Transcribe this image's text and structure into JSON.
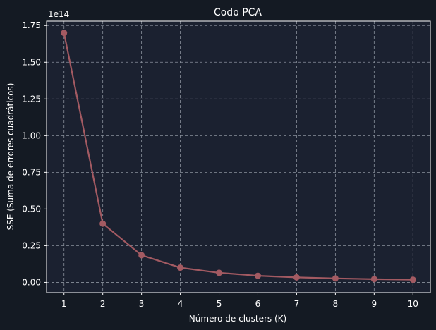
{
  "chart_data": {
    "type": "line",
    "title": "Codo PCA",
    "xlabel": "Número de clusters (K)",
    "ylabel": "SSE (Suma de errores cuadráticos)",
    "y_offset_label": "1e14",
    "x": [
      1,
      2,
      3,
      4,
      5,
      6,
      7,
      8,
      9,
      10
    ],
    "y_ticks": [
      0.0,
      0.25,
      0.5,
      0.75,
      1.0,
      1.25,
      1.5,
      1.75
    ],
    "y_tick_labels": [
      "0.00",
      "0.25",
      "0.50",
      "0.75",
      "1.00",
      "1.25",
      "1.50",
      "1.75"
    ],
    "x_tick_labels": [
      "1",
      "2",
      "3",
      "4",
      "5",
      "6",
      "7",
      "8",
      "9",
      "10"
    ],
    "ylim": [
      -0.07,
      1.78
    ],
    "xlim": [
      0.55,
      10.45
    ],
    "grid": true,
    "series": [
      {
        "values": [
          1.7,
          0.4,
          0.185,
          0.1,
          0.065,
          0.045,
          0.034,
          0.027,
          0.022,
          0.018
        ]
      }
    ],
    "colors": {
      "line": "#a35a62",
      "plot_bg": "#1b2130",
      "figure_bg": "#141a23",
      "grid": "#8a919c",
      "axes": "#ffffff",
      "text": "#ffffff"
    }
  }
}
